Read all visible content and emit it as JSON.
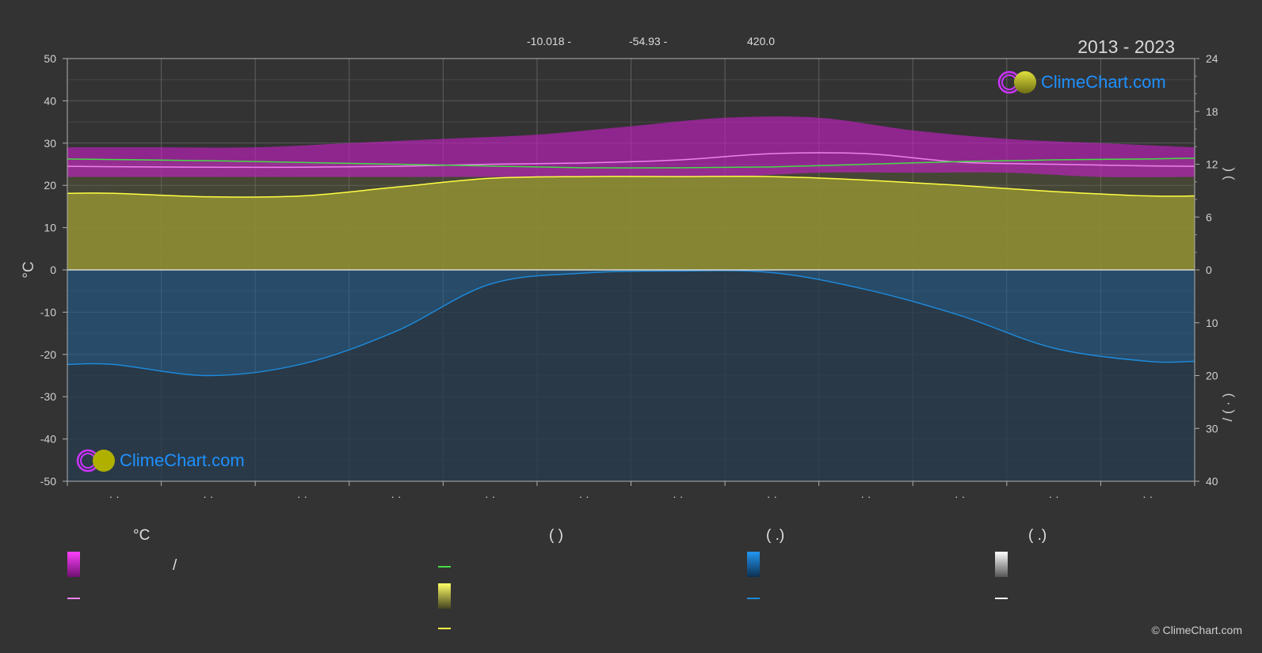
{
  "header": {
    "lat": "-10.018 -",
    "lon": "-54.93 -",
    "elev": "420.0",
    "years": "2013 - 2023"
  },
  "brand": {
    "logo_text": "ClimeChart.com",
    "copyright": "© ClimeChart.com"
  },
  "chart_data": {
    "type": "area",
    "left_axis": {
      "label": "°C",
      "min": -50,
      "max": 50,
      "ticks": [
        50,
        40,
        30,
        20,
        10,
        0,
        -10,
        -20,
        -30,
        -40,
        -50
      ]
    },
    "right_axis_top": {
      "min": 0,
      "max": 24,
      "ticks": [
        24,
        18,
        12,
        6,
        0
      ],
      "label_glyphs": ")  ("
    },
    "right_axis_bottom": {
      "min": 0,
      "max": 40,
      "ticks": [
        0,
        10,
        20,
        30,
        40
      ],
      "label_glyphs": "/  ( · )"
    },
    "months": 12,
    "month_tick_labels": [
      "· ·",
      "· ·",
      "· ·",
      "· ·",
      "· ·",
      "· ·",
      "· ·",
      "· ·",
      "· ·",
      "· ·",
      "· ·",
      "· ·"
    ],
    "series": [
      {
        "key": "max_temp_line",
        "color": "#ee82ee",
        "unit": "°C",
        "x": [
          0,
          1.5,
          2.5,
          3.5,
          4.5,
          5.5,
          6.5,
          7.5,
          8.5,
          9.5,
          10.5,
          11.5,
          12
        ],
        "values": [
          24.5,
          24.3,
          24.3,
          24.5,
          25.0,
          25.3,
          26.0,
          27.5,
          27.5,
          25.5,
          25.0,
          24.6,
          24.5
        ]
      },
      {
        "key": "daylight_hours",
        "color": "#44dd44",
        "unit": "h",
        "x": [
          0,
          1.5,
          2.5,
          3.5,
          4.5,
          5.5,
          6.5,
          7.5,
          8.5,
          9.5,
          10.5,
          11.5,
          12
        ],
        "values": [
          12.6,
          12.4,
          12.2,
          12.0,
          11.8,
          11.6,
          11.6,
          11.7,
          12.0,
          12.3,
          12.5,
          12.6,
          12.7
        ]
      },
      {
        "key": "sunshine_hours",
        "color": "#ffff44",
        "unit": "h",
        "x": [
          0,
          0.5,
          1.5,
          2.5,
          3.5,
          4.5,
          5.5,
          6.5,
          7.5,
          8.5,
          9.5,
          10.5,
          11.5,
          12
        ],
        "values": [
          8.7,
          8.7,
          8.3,
          8.4,
          9.4,
          10.4,
          10.6,
          10.6,
          10.6,
          10.2,
          9.6,
          8.9,
          8.4,
          8.4
        ]
      },
      {
        "key": "precipitation",
        "color": "#1e88d8",
        "unit": "mm/day",
        "x": [
          0,
          0.5,
          1.5,
          2.5,
          3.5,
          4.5,
          5.5,
          6.5,
          7.5,
          8.5,
          9.5,
          10.5,
          11.5,
          12
        ],
        "values": [
          17.9,
          17.9,
          20.0,
          17.8,
          11.6,
          2.7,
          0.6,
          0.2,
          0.5,
          3.7,
          8.6,
          14.8,
          17.3,
          17.3
        ]
      }
    ],
    "bands": [
      {
        "key": "temp_range",
        "color": "#d020d0",
        "unit": "°C",
        "upper": [
          29,
          29,
          29,
          30,
          31,
          32,
          34,
          36,
          36,
          33,
          31,
          30,
          29
        ],
        "lower": [
          22,
          22,
          22,
          22,
          22,
          22,
          22,
          22,
          23,
          23,
          23,
          22,
          22
        ]
      },
      {
        "key": "sunshine_fill",
        "color": "#a6a62e"
      },
      {
        "key": "precip_fill",
        "color": "#1c5a8a"
      }
    ],
    "grid": true
  },
  "legend": {
    "heads": [
      "°C",
      "(           )",
      "(   .)",
      "(   .)"
    ],
    "row_labels": [
      "/"
    ],
    "colors": {
      "temp_swatch": "#e020e0",
      "max_line": "#ee82ee",
      "day_line": "#44dd44",
      "sun_swatch": "#e8e83a",
      "sun_line": "#ffff44",
      "rain_swatch": "#1e88e5",
      "rain_line": "#1e88d8",
      "snow_swatch": "#ffffff",
      "snow_line": "#ffffff"
    }
  }
}
